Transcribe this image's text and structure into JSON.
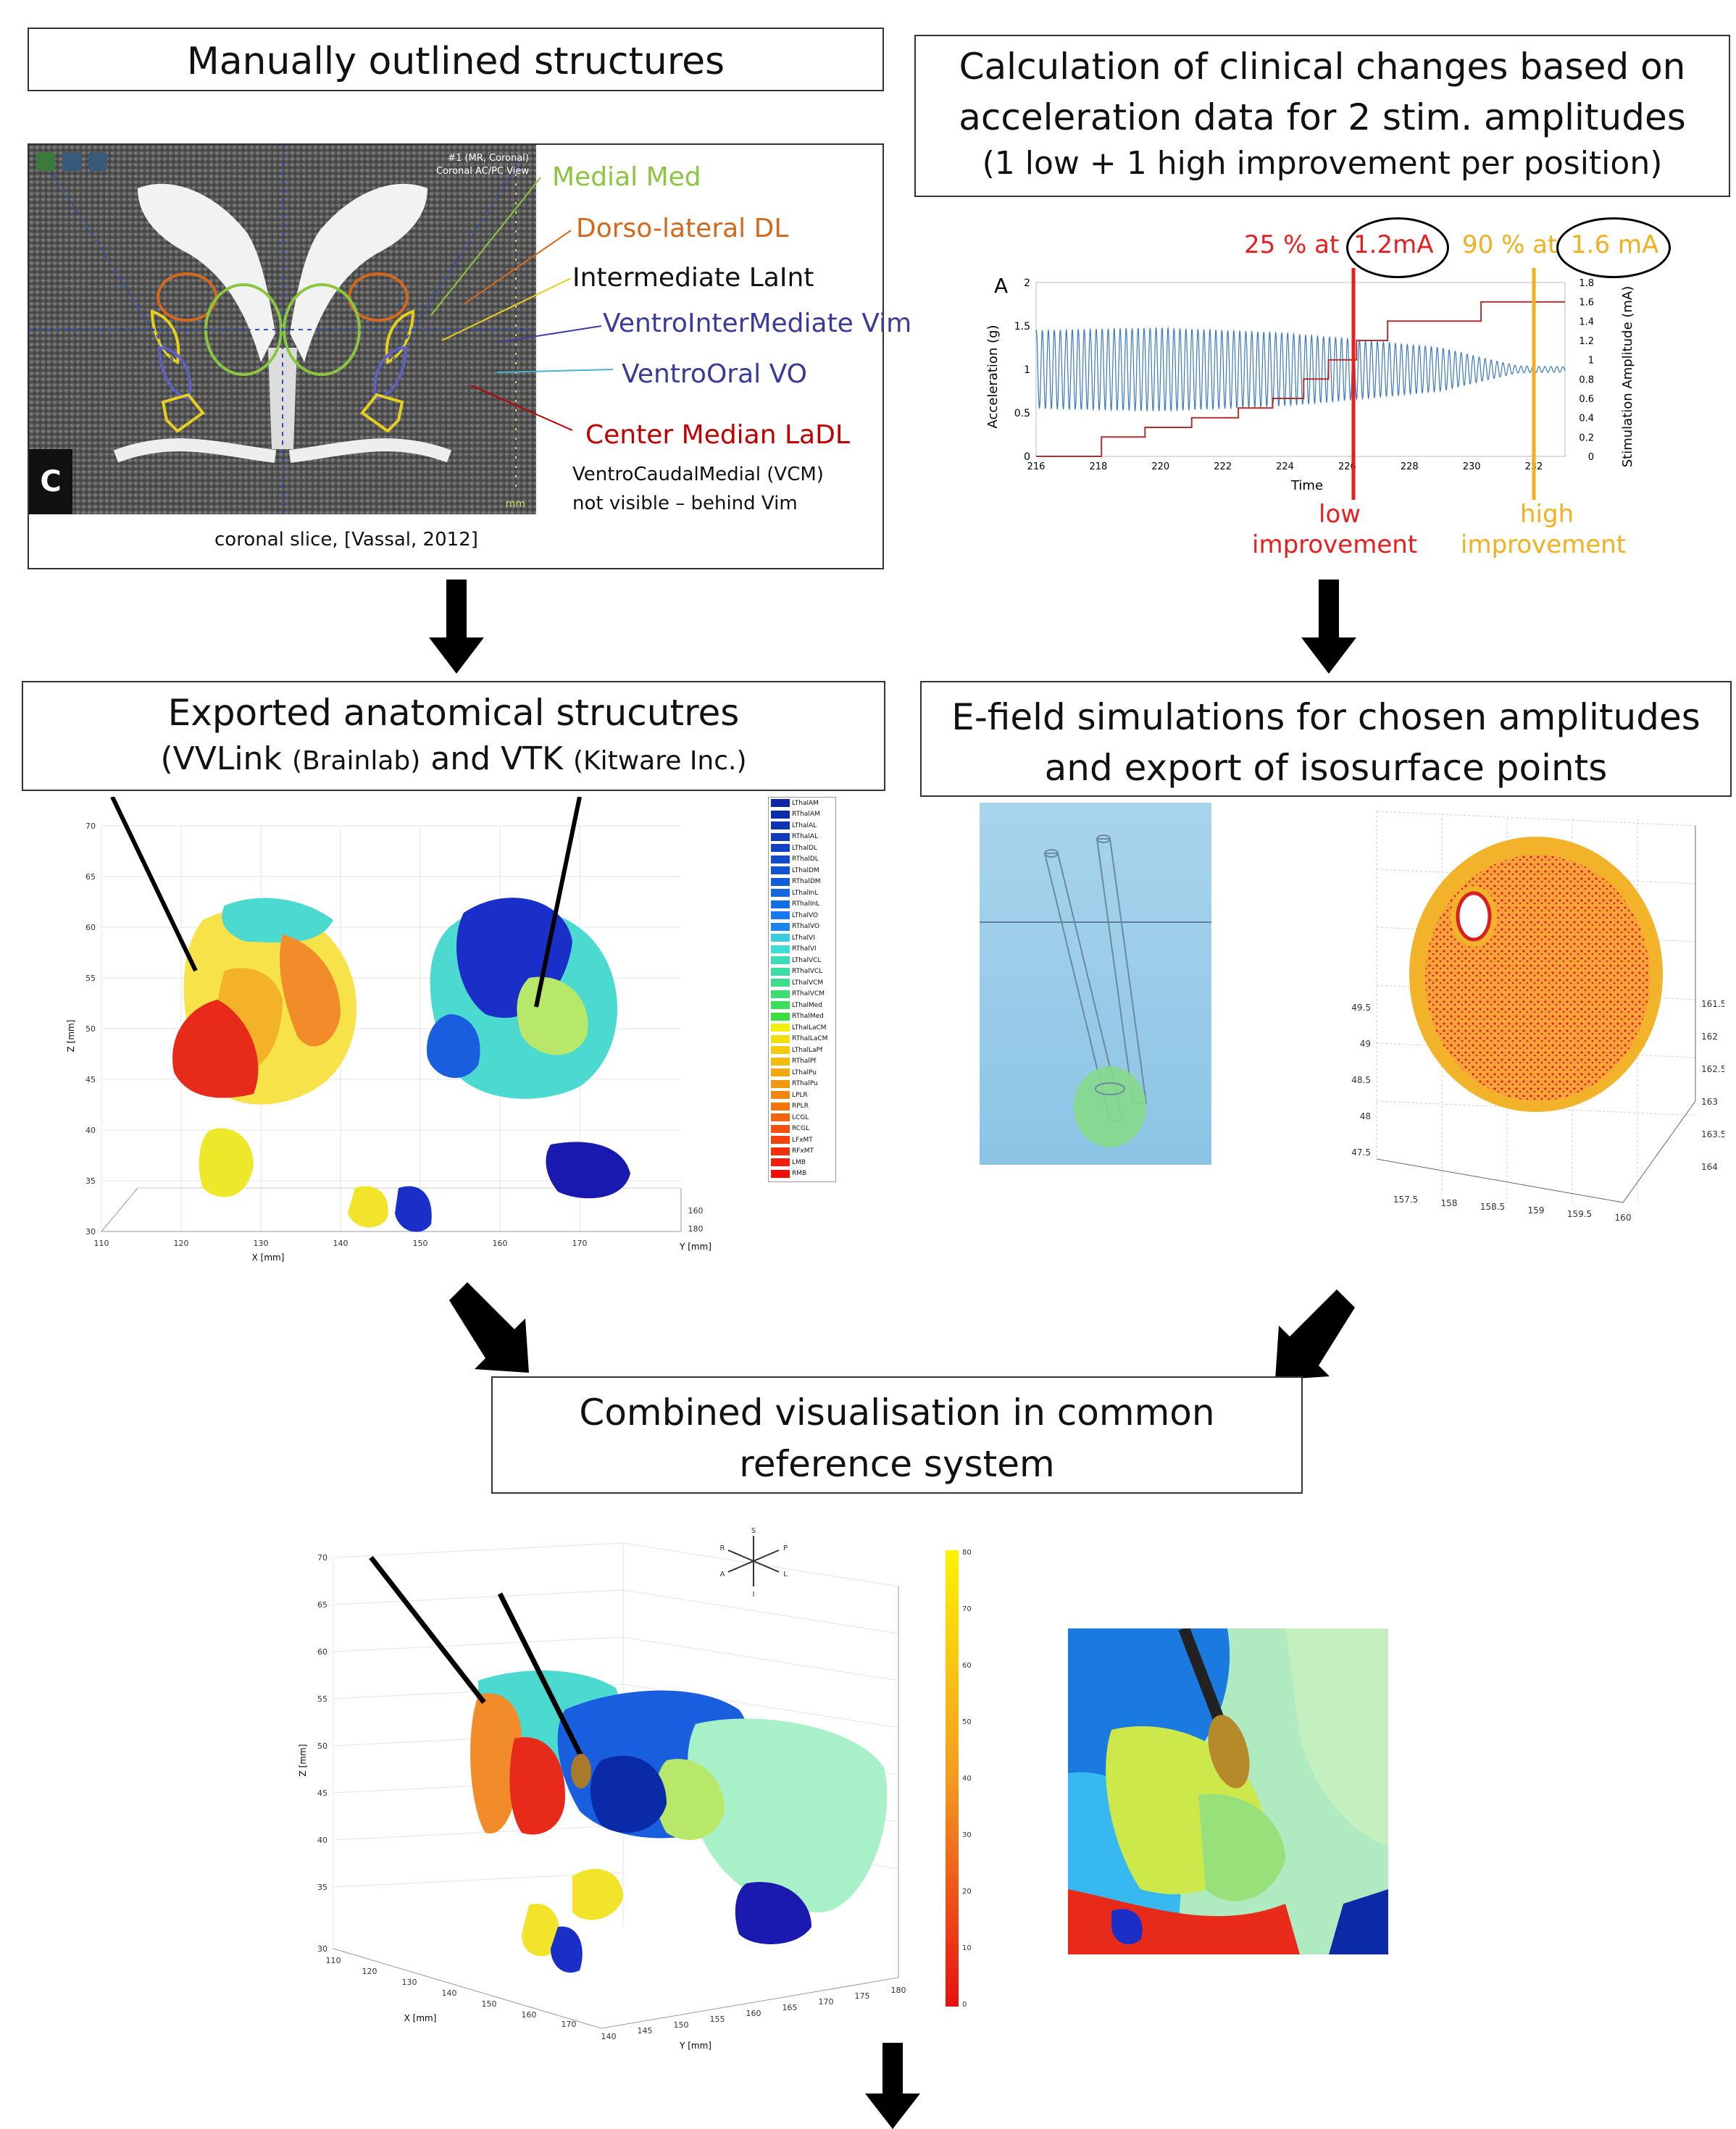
{
  "box_manual": {
    "title": "Manually outlined structures"
  },
  "box_calc": {
    "line1": "Calculation of clinical changes based on",
    "line2": "acceleration data for 2 stim. amplitudes",
    "line3": "(1 low + 1 high improvement per position)"
  },
  "mri": {
    "caption": "coronal slice, [Vassal, 2012]",
    "panel_letter": "C",
    "corner_text_1": "#1 (MR, Coronal)",
    "corner_text_2": "Coronal AC/PC View",
    "scale_unit": "mm",
    "labels": {
      "medial": "Medial Med",
      "dorsolateral": "Dorso-lateral DL",
      "intermediate": "Intermediate LaInt",
      "vim": "VentroInterMediate Vim",
      "vo": "VentroOral VO",
      "center_median": "Center Median LaDL",
      "vcm_1": "VentroCaudalMedial (VCM)",
      "vcm_2": "not visible – behind Vim"
    }
  },
  "accel_chart": {
    "annot_low_prefix": "25 % at",
    "annot_low_value": "1.2mA",
    "annot_high_prefix": "90 % at",
    "annot_high_value": "1.6 mA",
    "panel_letter": "A",
    "ylabel_left": "Acceleration (g)",
    "ylabel_right": "Stimulation Amplitude (mA)",
    "xlabel": "Time",
    "low_label_1": "low",
    "low_label_2": "improvement",
    "high_label_1": "high",
    "high_label_2": "improvement"
  },
  "chart_data": {
    "type": "line",
    "xlabel": "Time",
    "ylabel": "Acceleration (g)",
    "y2label": "Stimulation Amplitude (mA)",
    "xlim": [
      216,
      233
    ],
    "ylim": [
      0,
      2
    ],
    "y2lim": [
      0,
      1.8
    ],
    "x_ticks": [
      216,
      218,
      220,
      222,
      224,
      226,
      228,
      230,
      232
    ],
    "y_ticks": [
      0,
      0.5,
      1,
      1.5,
      2
    ],
    "y2_ticks": [
      0,
      0.2,
      0.4,
      0.6,
      0.8,
      1,
      1.2,
      1.4,
      1.6,
      1.8
    ],
    "series": [
      {
        "axis": "left",
        "color": "#3a78c2",
        "oscillation_center": 1.0,
        "amplitude_envelope": [
          [
            216,
            0.45
          ],
          [
            220,
            0.48
          ],
          [
            224,
            0.42
          ],
          [
            227,
            0.32
          ],
          [
            229,
            0.25
          ],
          [
            230.5,
            0.12
          ],
          [
            231.5,
            0.04
          ],
          [
            233,
            0.03
          ]
        ]
      },
      {
        "axis": "right",
        "color": "#b03030",
        "shape": "step",
        "steps": [
          [
            216,
            0
          ],
          [
            218.1,
            0
          ],
          [
            218.1,
            0.2
          ],
          [
            219.5,
            0.2
          ],
          [
            219.5,
            0.3
          ],
          [
            221,
            0.3
          ],
          [
            221,
            0.4
          ],
          [
            222.5,
            0.4
          ],
          [
            222.5,
            0.5
          ],
          [
            223.6,
            0.5
          ],
          [
            223.6,
            0.6
          ],
          [
            224.6,
            0.6
          ],
          [
            224.6,
            0.8
          ],
          [
            225.4,
            0.8
          ],
          [
            225.4,
            1.0
          ],
          [
            226.3,
            1.0
          ],
          [
            226.3,
            1.2
          ],
          [
            227.3,
            1.2
          ],
          [
            227.3,
            1.4
          ],
          [
            230.3,
            1.4
          ],
          [
            230.3,
            1.6
          ],
          [
            233,
            1.6
          ]
        ]
      }
    ],
    "markers": [
      {
        "x": 226.2,
        "label": "low improvement",
        "color": "#e52020"
      },
      {
        "x": 232.0,
        "label": "high improvement",
        "color": "#f0b020"
      }
    ]
  },
  "box_exported": {
    "line1": "Exported anatomical strucutres",
    "line2_a": "(VVLink",
    "line2_b": "(Brainlab)",
    "line2_c": "and VTK",
    "line2_d": "(Kitware Inc.)"
  },
  "box_efield": {
    "line1": "E-field simulations for chosen amplitudes",
    "line2": "and export of isosurface points"
  },
  "plot_exported": {
    "xlabel": "X [mm]",
    "ylabel": "Z [mm]",
    "zlabel": "Y [mm]",
    "z_ticks": [
      "70",
      "65",
      "60",
      "55",
      "50",
      "45",
      "40",
      "35",
      "30"
    ],
    "x_ticks": [
      "110",
      "120",
      "130",
      "140",
      "150",
      "160",
      "170"
    ],
    "y_corner_ticks": [
      "160",
      "180"
    ],
    "legend": [
      "LThalAM",
      "RThalAM",
      "LThalAL",
      "RThalAL",
      "LThalDL",
      "RThalDL",
      "LThalDM",
      "RThalDM",
      "LThalInL",
      "RThalInL",
      "LThalVO",
      "RThalVO",
      "LThalVI",
      "RThalVI",
      "LThalVCL",
      "RThalVCL",
      "LThalVCM",
      "RThalVCM",
      "LThalMed",
      "RThalMed",
      "LThalLaCM",
      "RThalLaCM",
      "LThalLaPf",
      "RThalPf",
      "LThalPu",
      "RThalPu",
      "LPLR",
      "RPLR",
      "LCGL",
      "RCGL",
      "LFxMT",
      "RFxMT",
      "LMB",
      "RMB"
    ]
  },
  "plot_isosurface": {
    "z_ticks": [
      "49.5",
      "49",
      "48.5",
      "48",
      "47.5"
    ],
    "x_ticks": [
      "157.5",
      "158",
      "158.5",
      "159",
      "159.5",
      "160"
    ],
    "y_ticks": [
      "161.5",
      "162",
      "162.5",
      "163",
      "163.5",
      "164"
    ]
  },
  "box_combined": {
    "line1": "Combined visualisation in common",
    "line2": "reference system"
  },
  "plot_combined": {
    "xlabel": "X [mm]",
    "ylabel": "Z [mm]",
    "y2label": "Y [mm]",
    "z_ticks": [
      "70",
      "65",
      "60",
      "55",
      "50",
      "45",
      "40",
      "35",
      "30"
    ],
    "x_ticks": [
      "110",
      "120",
      "130",
      "140",
      "150",
      "160",
      "170"
    ],
    "y_ticks": [
      "140",
      "145",
      "150",
      "155",
      "160",
      "165",
      "170",
      "175",
      "180"
    ],
    "colorbar_ticks": [
      "80",
      "70",
      "60",
      "50",
      "40",
      "30",
      "20",
      "10",
      "0"
    ],
    "orient_labels": [
      "S",
      "P",
      "L",
      "I",
      "R",
      "A"
    ]
  },
  "colors": {
    "mri_green": "#8cc63f",
    "mri_orange": "#d2691e",
    "mri_blue": "#4040a0",
    "mri_red": "#c00000",
    "low_red": "#e52020",
    "high_yellow": "#f0b020",
    "arrow": "#000000"
  }
}
